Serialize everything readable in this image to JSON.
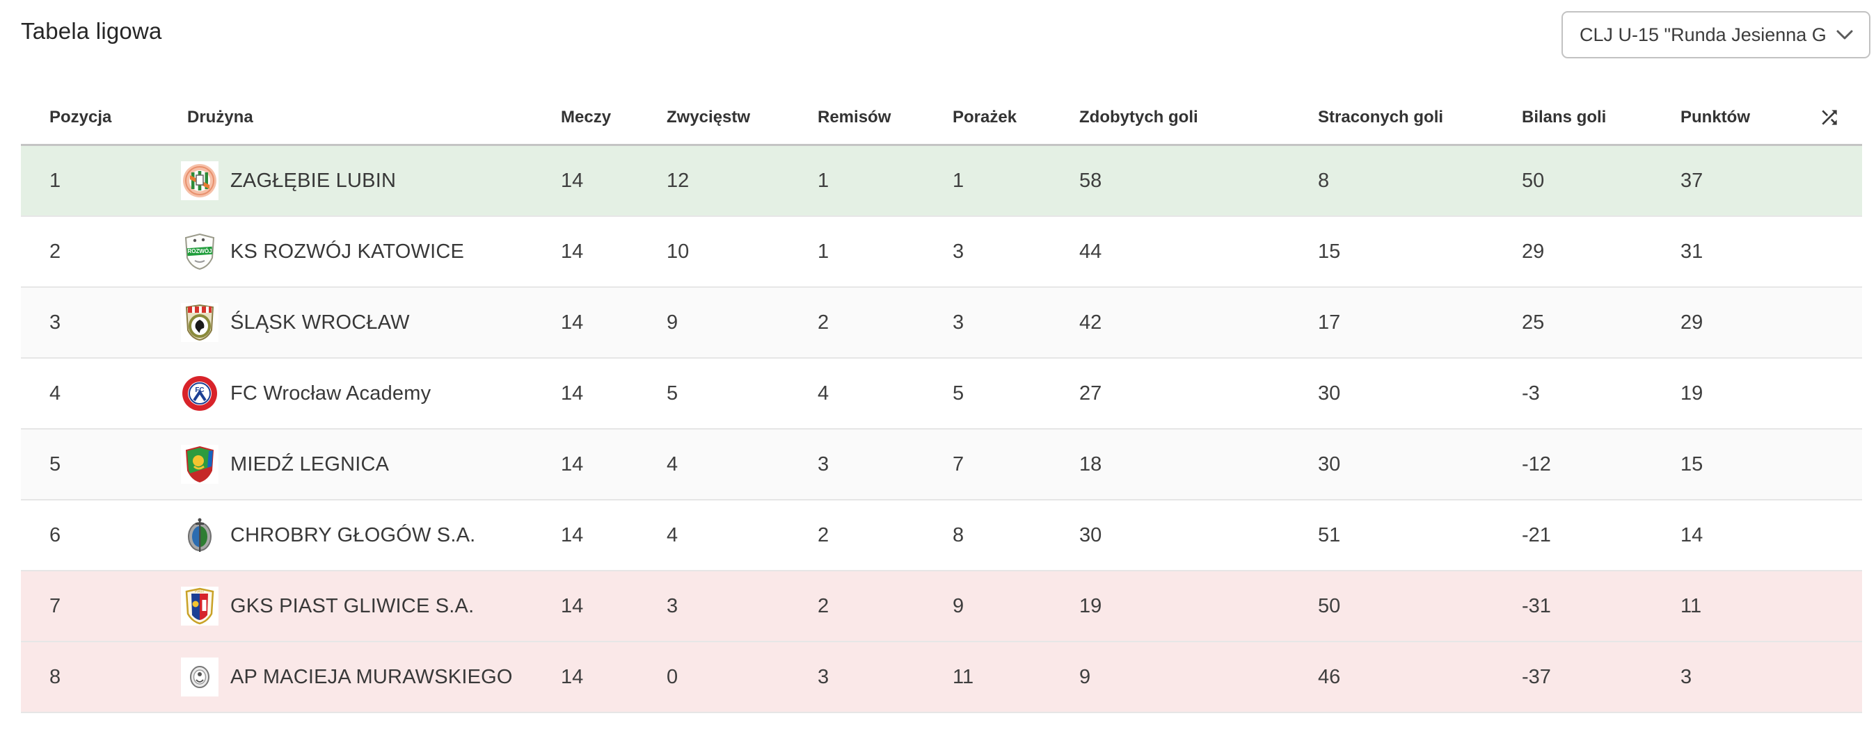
{
  "page": {
    "title": "Tabela ligowa"
  },
  "league_select": {
    "value": "CLJ U-15 \"Runda Jesienna G…",
    "chevron_icon": "chevron-down-icon"
  },
  "table": {
    "columns": [
      "Pozycja",
      "Drużyna",
      "Meczy",
      "Zwycięstw",
      "Remisów",
      "Porażek",
      "Zdobytych goli",
      "Straconych goli",
      "Bilans goli",
      "Punktów"
    ],
    "shuffle_icon": "shuffle-icon",
    "colors": {
      "promotion_row_bg": "#e4f0e4",
      "relegation_row_bg": "#fae8e8",
      "stripe_row_bg": "#fafafa"
    },
    "rows": [
      {
        "position": "1",
        "team": "ZAGŁĘBIE LUBIN",
        "logo": "zaglebie-lubin-crest",
        "zone": "promotion",
        "matches": "14",
        "wins": "12",
        "draws": "1",
        "losses": "1",
        "goals_for": "58",
        "goals_against": "8",
        "goal_balance": "50",
        "points": "37"
      },
      {
        "position": "2",
        "team": "KS ROZWÓJ KATOWICE",
        "logo": "rozwoj-katowice-crest",
        "zone": "none",
        "matches": "14",
        "wins": "10",
        "draws": "1",
        "losses": "3",
        "goals_for": "44",
        "goals_against": "15",
        "goal_balance": "29",
        "points": "31"
      },
      {
        "position": "3",
        "team": "ŚLĄSK WROCŁAW",
        "logo": "slask-wroclaw-crest",
        "zone": "none",
        "matches": "14",
        "wins": "9",
        "draws": "2",
        "losses": "3",
        "goals_for": "42",
        "goals_against": "17",
        "goal_balance": "25",
        "points": "29"
      },
      {
        "position": "4",
        "team": "FC Wrocław Academy",
        "logo": "fc-wroclaw-academy-crest",
        "zone": "none",
        "matches": "14",
        "wins": "5",
        "draws": "4",
        "losses": "5",
        "goals_for": "27",
        "goals_against": "30",
        "goal_balance": "-3",
        "points": "19"
      },
      {
        "position": "5",
        "team": "MIEDŹ LEGNICA",
        "logo": "miedz-legnica-crest",
        "zone": "none",
        "matches": "14",
        "wins": "4",
        "draws": "3",
        "losses": "7",
        "goals_for": "18",
        "goals_against": "30",
        "goal_balance": "-12",
        "points": "15"
      },
      {
        "position": "6",
        "team": "CHROBRY GŁOGÓW S.A.",
        "logo": "chrobry-glogow-crest",
        "zone": "none",
        "matches": "14",
        "wins": "4",
        "draws": "2",
        "losses": "8",
        "goals_for": "30",
        "goals_against": "51",
        "goal_balance": "-21",
        "points": "14"
      },
      {
        "position": "7",
        "team": "GKS PIAST GLIWICE S.A.",
        "logo": "piast-gliwice-crest",
        "zone": "relegation",
        "matches": "14",
        "wins": "3",
        "draws": "2",
        "losses": "9",
        "goals_for": "19",
        "goals_against": "50",
        "goal_balance": "-31",
        "points": "11"
      },
      {
        "position": "8",
        "team": "AP MACIEJA MURAWSKIEGO",
        "logo": "ap-macieja-murawskiego-crest",
        "zone": "relegation",
        "matches": "14",
        "wins": "0",
        "draws": "3",
        "losses": "11",
        "goals_for": "9",
        "goals_against": "46",
        "goal_balance": "-37",
        "points": "3"
      }
    ]
  }
}
